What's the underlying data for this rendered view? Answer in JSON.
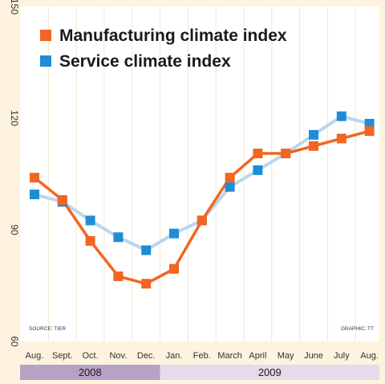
{
  "chart_data": {
    "type": "line",
    "title": "",
    "xlabel": "",
    "ylabel": "",
    "categories": [
      "Aug.",
      "Sept.",
      "Oct.",
      "Nov.",
      "Dec.",
      "Jan.",
      "Feb.",
      "March",
      "April",
      "May",
      "June",
      "July",
      "Aug."
    ],
    "series": [
      {
        "name": "Manufacturing climate index",
        "color": "#f26522",
        "values": [
          104,
          98,
          87,
          77.5,
          75.5,
          79.5,
          92.5,
          104,
          110.5,
          110.5,
          112.5,
          114.5,
          116.5
        ]
      },
      {
        "name": "Service climate index",
        "color": "#1f8dd6",
        "values": [
          99.5,
          97.5,
          92.5,
          88,
          84.5,
          89,
          92.5,
          101.5,
          106,
          110.5,
          115.5,
          120.5,
          118.5
        ]
      }
    ],
    "yticks": [
      60,
      90,
      120,
      150
    ],
    "ylim": [
      60,
      150
    ],
    "years": [
      {
        "label": "2008",
        "from": 0,
        "to": 4
      },
      {
        "label": "2009",
        "from": 5,
        "to": 12
      }
    ],
    "source": "SOURCE: TIER",
    "credit": "GRAPHIC: TT",
    "grid": "vertical",
    "legend_position": "top-left"
  }
}
